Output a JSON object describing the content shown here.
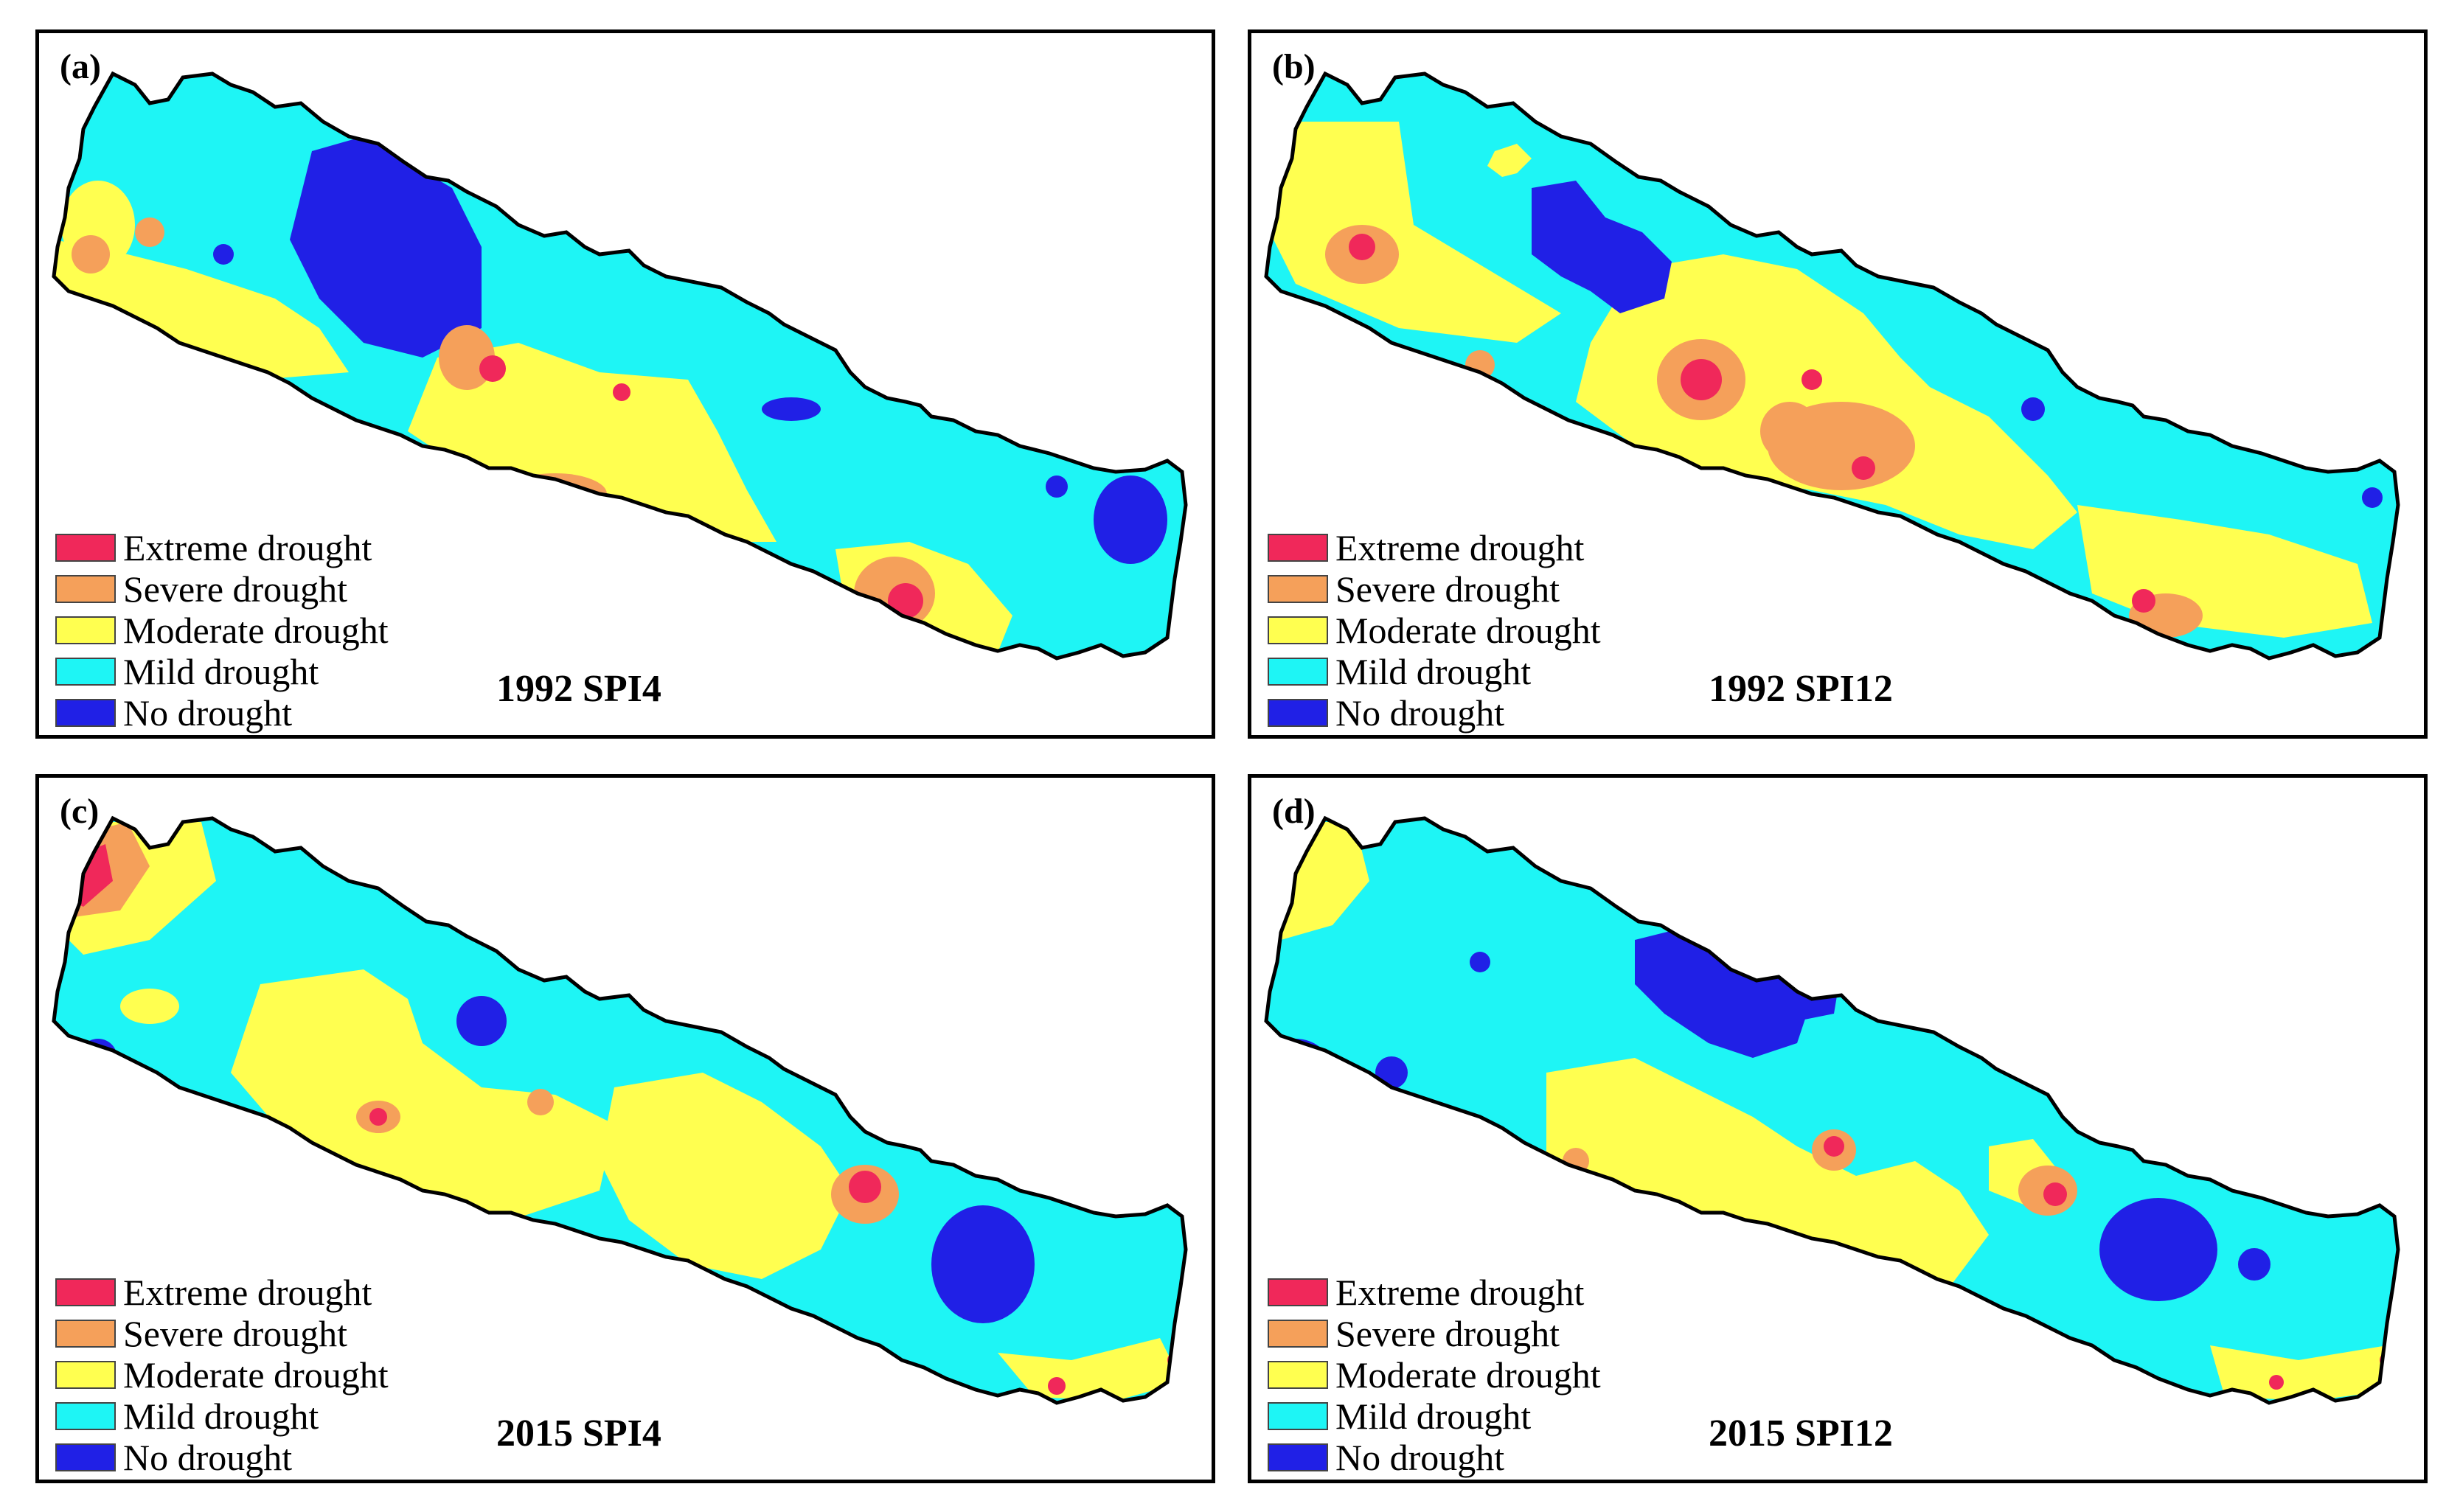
{
  "figure": {
    "colors": {
      "extreme": "#f0285a",
      "severe": "#f5a05a",
      "moderate": "#ffff50",
      "mild": "#1ef5f5",
      "none": "#2020e6",
      "outline": "#000000"
    },
    "legend": [
      {
        "class": "extreme",
        "label": "Extreme drought",
        "color": "#f0285a"
      },
      {
        "class": "severe",
        "label": "Severe drought",
        "color": "#f5a05a"
      },
      {
        "class": "moderate",
        "label": "Moderate drought",
        "color": "#ffff50"
      },
      {
        "class": "mild",
        "label": "Mild  drought",
        "color": "#1ef5f5"
      },
      {
        "class": "none",
        "label": "No drought",
        "color": "#2020e6"
      }
    ],
    "panels": [
      {
        "id": "a",
        "label": "(a)",
        "caption": "1992 SPI4"
      },
      {
        "id": "b",
        "label": "(b)",
        "caption": "1992 SPI12"
      },
      {
        "id": "c",
        "label": "(c)",
        "caption": "2015 SPI4"
      },
      {
        "id": "d",
        "label": "(d)",
        "caption": "2015 SPI12"
      }
    ]
  }
}
